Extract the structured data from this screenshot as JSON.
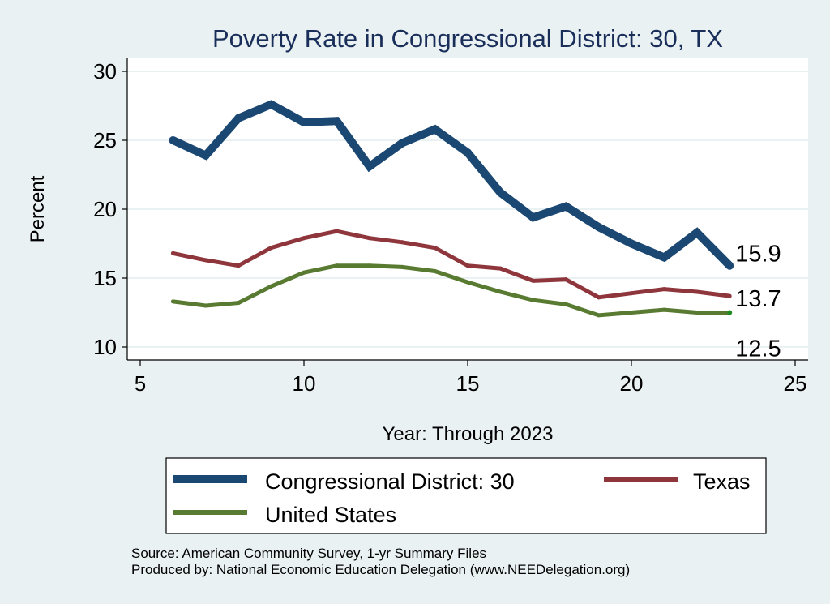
{
  "chart_data": {
    "type": "line",
    "title": "Poverty Rate in Congressional District:  30, TX",
    "xlabel": "Year: Through 2023",
    "ylabel": "Percent",
    "xlim": [
      5,
      25
    ],
    "ylim": [
      10,
      30
    ],
    "x_ticks": [
      5,
      10,
      15,
      20,
      25
    ],
    "y_ticks": [
      10,
      15,
      20,
      25,
      30
    ],
    "grid": "horizontal",
    "legend_position": "bottom",
    "x": [
      6,
      7,
      8,
      9,
      10,
      11,
      12,
      13,
      14,
      15,
      16,
      17,
      18,
      19,
      20,
      21,
      22,
      23
    ],
    "series": [
      {
        "name": "Congressional District:  30",
        "color": "#1b4872",
        "values": [
          25.0,
          23.9,
          26.6,
          27.6,
          26.3,
          26.4,
          23.1,
          24.8,
          25.8,
          24.1,
          21.2,
          19.4,
          20.2,
          18.7,
          17.5,
          16.5,
          18.3,
          15.9
        ],
        "end_label": "15.9"
      },
      {
        "name": "Texas",
        "color": "#8f363d",
        "values": [
          16.8,
          16.3,
          15.9,
          17.2,
          17.9,
          18.4,
          17.9,
          17.6,
          17.2,
          15.9,
          15.7,
          14.8,
          14.9,
          13.6,
          13.9,
          14.2,
          14.0,
          13.7
        ],
        "end_label": "13.7"
      },
      {
        "name": "United States",
        "color": "#587a31",
        "values": [
          13.3,
          13.0,
          13.2,
          14.4,
          15.4,
          15.9,
          15.9,
          15.8,
          15.5,
          14.7,
          14.0,
          13.4,
          13.1,
          12.3,
          12.5,
          12.7,
          12.5,
          12.5
        ],
        "end_label": "12.5"
      }
    ],
    "notes": [
      "Source: American Community Survey, 1-yr Summary Files",
      "Produced by: National Economic Education Delegation (www.NEEDelegation.org)"
    ]
  },
  "colors": {
    "background": "#eaf1f3",
    "plot_background": "#ffffff",
    "gridline": "#eaf1f3",
    "title": "#1a2e5a",
    "end_marker_us": "#1f8a1f"
  }
}
